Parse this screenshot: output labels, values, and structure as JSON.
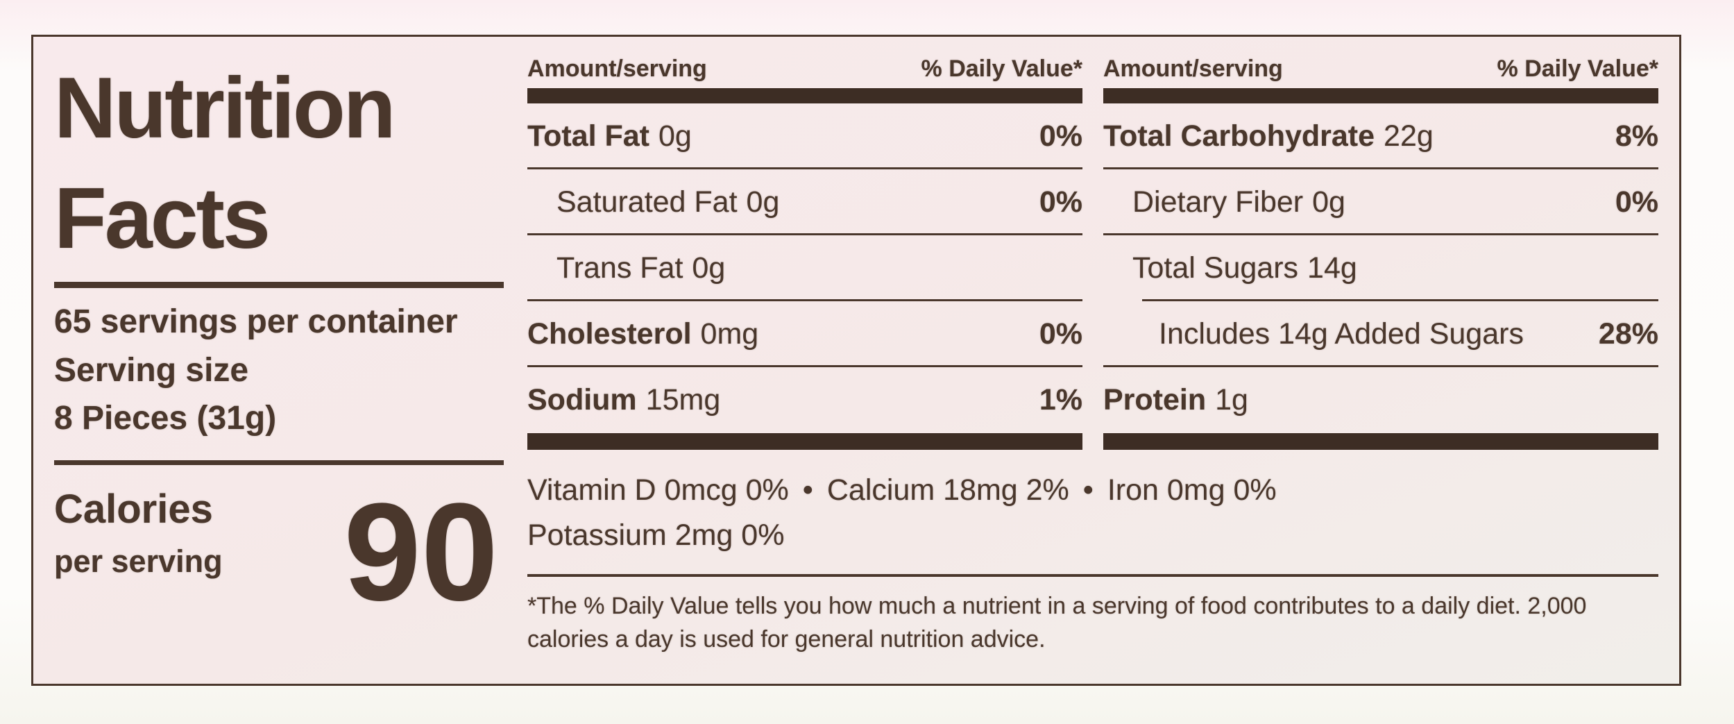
{
  "label": {
    "colors": {
      "ink": "#4a372c",
      "paper": "#f5e9e8",
      "page_background": "#fdfbfa"
    },
    "title": {
      "line1": "Nutrition",
      "line2": "Facts"
    },
    "servings": {
      "per_container": "65 servings per container",
      "serving_size_label": "Serving size",
      "serving_size_value": "8 Pieces (31g)"
    },
    "calories": {
      "label": "Calories",
      "sublabel": "per serving",
      "value": "90"
    },
    "fats_column": {
      "header_amount": "Amount/serving",
      "header_daily_value": "% Daily Value*",
      "rows": [
        {
          "name": "Total Fat",
          "amount": "0g",
          "dv": "0%"
        },
        {
          "name": "Saturated Fat",
          "amount": "0g",
          "dv": "0%"
        },
        {
          "name": "Trans Fat",
          "amount": "0g",
          "dv": ""
        },
        {
          "name": "Cholesterol",
          "amount": "0mg",
          "dv": "0%"
        },
        {
          "name": "Sodium",
          "amount": "15mg",
          "dv": "1%"
        }
      ]
    },
    "carbs_column": {
      "header_amount": "Amount/serving",
      "header_daily_value": "% Daily Value*",
      "rows": [
        {
          "name": "Total Carbohydrate",
          "amount": "22g",
          "dv": "8%"
        },
        {
          "name": "Dietary Fiber",
          "amount": "0g",
          "dv": "0%"
        },
        {
          "name": "Total Sugars",
          "amount": "14g",
          "dv": ""
        },
        {
          "name": "Includes 14g Added Sugars",
          "amount": "",
          "dv": "28%"
        },
        {
          "name": "Protein",
          "amount": "1g",
          "dv": ""
        }
      ]
    },
    "micronutrients": {
      "separator": "•",
      "items": [
        "Vitamin D 0mcg 0%",
        "Calcium 18mg 2%",
        "Iron 0mg 0%"
      ],
      "line2": "Potassium 2mg 0%"
    },
    "footnote": {
      "line1": "*The % Daily Value tells you how much a nutrient in a serving of food contributes to a daily diet. 2,000",
      "line2": "calories a day is used for general nutrition advice."
    }
  }
}
